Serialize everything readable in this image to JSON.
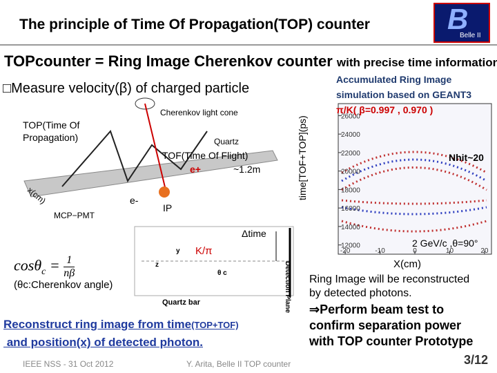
{
  "header": {
    "title": "The principle of Time Of Propagation(TOP) counter",
    "logo_text": "Belle II"
  },
  "headline": {
    "main": "TOPcounter = Ring Image Cherenkov counter",
    "suffix": "with precise time information"
  },
  "bullet": "□Measure velocity(β) of charged particle",
  "diagram": {
    "cone": "Cherenkov light cone",
    "top_line1": "TOP(Time Of",
    "top_line2": "Propagation)",
    "quartz": "Quartz",
    "tof": "TOF(Time Of Flight)",
    "e_plus": "e+",
    "length": "~1.2m",
    "x_axis": "x(cm)",
    "e_minus": "e-",
    "pmt": "MCP−PMT",
    "ip": "IP"
  },
  "formula": {
    "lhs": "cosθ",
    "sub": "c",
    "eq": "=",
    "num": "1",
    "den": "nβ",
    "note": "(θc:Cherenkov angle)"
  },
  "side_view": {
    "dtime": "Δtime",
    "particle": "K/π",
    "y": "y",
    "z": "z",
    "theta": "θ c",
    "bar": "Quartz bar",
    "plane": "Detection Plane"
  },
  "plot": {
    "title_line1": "Accumulated Ring Image",
    "title_line2": "simulation based on GEANT3",
    "title_line3": "π/K( β=0.997 , 0.970 )",
    "nhit": "Nhit~20",
    "condition": "2 GeV/c ,θ=90°",
    "ylabel": "time[TOF+TOP](ps)",
    "xlabel": "X(cm)",
    "ylim": [
      11000,
      27300
    ],
    "yticks": [
      12000,
      14000,
      16000,
      18000,
      20000,
      22000,
      24000,
      26000
    ],
    "xlim": [
      -22,
      22
    ],
    "xticks": [
      -20,
      -10,
      0,
      10,
      20
    ]
  },
  "right_text": {
    "line1": "Ring Image will be reconstructed",
    "line2": "by detected photons.",
    "line3": "⇒Perform beam test to",
    "line4": "confirm separation power",
    "line5": "with TOP counter Prototype"
  },
  "bottom_text": {
    "line1": "Reconstruct ring image from time",
    "line1_small": "(TOP+TOF)",
    "line2": " and position(x) of detected photon."
  },
  "footer": {
    "event": "IEEE NSS - 31 Oct 2012",
    "author": "Y. Arita, Belle II TOP counter",
    "page": "3/12"
  }
}
